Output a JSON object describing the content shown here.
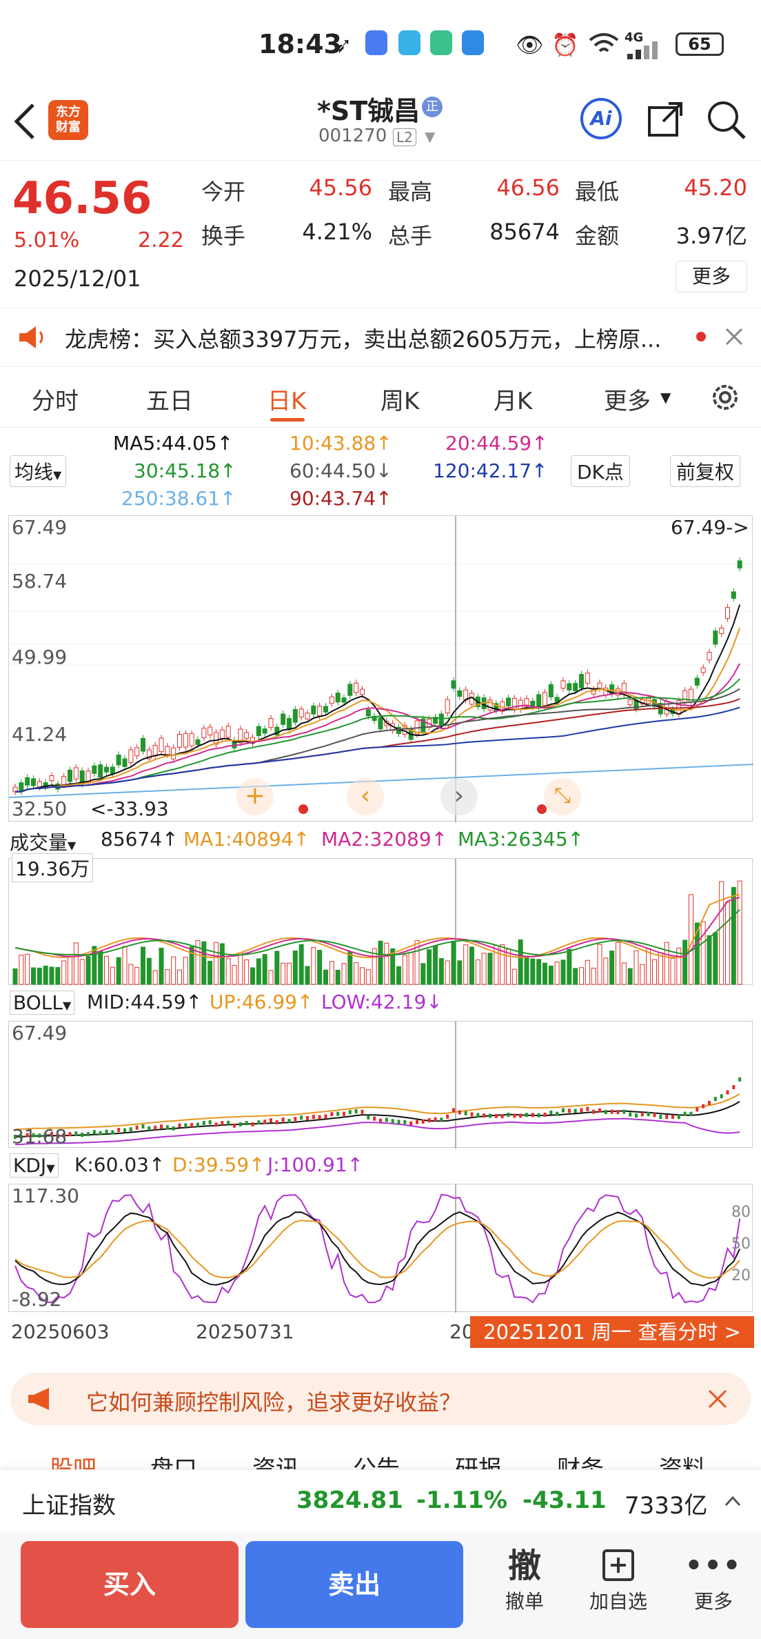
{
  "status": {
    "time": "18:43",
    "network": "4G",
    "battery": "65"
  },
  "header": {
    "logo_line1": "东方",
    "logo_line2": "财富",
    "stock_name": "*ST铖昌",
    "stock_code": "001270",
    "level": "L2",
    "ai_label": "Ai",
    "badge": "正"
  },
  "quote": {
    "price": "46.56",
    "change_pct": "5.01%",
    "change": "2.22",
    "date": "2025/12/01",
    "open_label": "今开",
    "open": "45.56",
    "high_label": "最高",
    "high": "46.56",
    "low_label": "最低",
    "low": "45.20",
    "turnover_label": "换手",
    "turnover": "4.21%",
    "volume_label": "总手",
    "volume": "85674",
    "amount_label": "金额",
    "amount": "3.97亿",
    "more": "更多"
  },
  "news": {
    "text": "龙虎榜：买入总额3397万元，卖出总额2605万元，上榜原..."
  },
  "tabs": [
    "分时",
    "五日",
    "日K",
    "周K",
    "月K",
    "更多"
  ],
  "ma": {
    "selector": "均线",
    "ma5": "MA5:44.05↑",
    "ma10": "10:43.88↑",
    "ma20": "20:44.59↑",
    "ma30": "30:45.18↑",
    "ma60": "60:44.50↓",
    "ma120": "120:42.17↑",
    "ma250": "250:38.61↑",
    "ma90": "90:43.74↑",
    "dk": "DK点",
    "fq": "前复权"
  },
  "kline": {
    "y_labels": [
      "67.49",
      "58.74",
      "49.99",
      "41.24",
      "32.50"
    ],
    "max_marker": "67.49->",
    "min_marker": "<-33.93"
  },
  "vol": {
    "selector": "成交量",
    "value": "85674↑",
    "ma1": "MA1:40894↑",
    "ma2": "MA2:32089↑",
    "ma3": "MA3:26345↑",
    "max": "19.36万"
  },
  "boll": {
    "selector": "BOLL",
    "mid": "MID:44.59↑",
    "up": "UP:46.99↑",
    "low": "LOW:42.19↓",
    "top": "67.49",
    "bottom": "31.68"
  },
  "kdj": {
    "selector": "KDJ",
    "k": "K:60.03↑",
    "d": "D:39.59↑",
    "j": "J:100.91↑",
    "top": "117.30",
    "bottom": "-8.92",
    "levels": [
      "80",
      "50",
      "20"
    ]
  },
  "dates": {
    "d1": "20250603",
    "d2": "20250731",
    "d3": "20",
    "current": "20251201 周一 查看分时 >"
  },
  "promo": {
    "text": "它如何兼顾控制风险，追求更好收益？"
  },
  "bottom_tabs": [
    "股吧",
    "盘口",
    "资讯",
    "公告",
    "研报",
    "财务",
    "资料"
  ],
  "index": {
    "name": "上证指数",
    "value": "3824.81",
    "pct": "-1.11%",
    "change": "-43.11",
    "amount": "7333亿"
  },
  "actions": {
    "buy": "买入",
    "sell": "卖出",
    "cancel_icon": "撤",
    "cancel": "撤单",
    "add": "加自选",
    "more": "更多"
  },
  "colors": {
    "red": "#e0302a",
    "green": "#21962c",
    "accent": "#e8561e",
    "blue": "#3b6fe8"
  }
}
